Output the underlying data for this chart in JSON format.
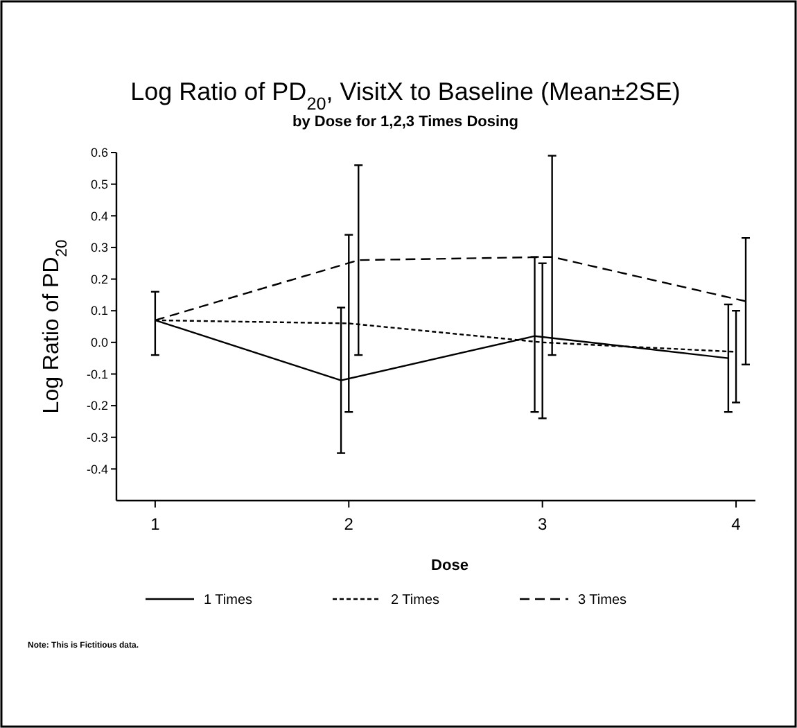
{
  "chart_data": {
    "type": "line",
    "title": "Log Ratio of PD$_{20}$, VisitX to Baseline (Mean±2SE)",
    "subtitle": "by Dose for 1,2,3 Times Dosing",
    "xlabel": "Dose",
    "ylabel": "Log Ratio of PD$_{20}$",
    "xlim": [
      0.8,
      4.1
    ],
    "xticks": [
      1,
      2,
      3,
      4
    ],
    "ylim": [
      -0.5,
      0.6
    ],
    "yticks": [
      0.6,
      0.5,
      0.4,
      0.3,
      0.2,
      0.1,
      {
        "value": 0,
        "label": "0.0"
      },
      -0.1,
      -0.2,
      -0.3,
      -0.4
    ],
    "series": [
      {
        "name": "1 Times",
        "color": "#000000",
        "line_style": "solid",
        "x": [
          1,
          1.96,
          2.96,
          3.96
        ],
        "values": [
          0.07,
          -0.12,
          0.02,
          -0.05
        ],
        "errors": [
          [
            -0.04,
            0.16
          ],
          [
            -0.35,
            0.11
          ],
          [
            -0.22,
            0.27
          ],
          [
            -0.22,
            0.12
          ]
        ]
      },
      {
        "name": "2 Times",
        "color": "#000000",
        "line_style": "dotted",
        "x": [
          1,
          2,
          3,
          4
        ],
        "values": [
          0.07,
          0.06,
          0.0,
          -0.03
        ],
        "errors": [
          null,
          [
            -0.22,
            0.34
          ],
          [
            -0.24,
            0.25
          ],
          [
            -0.19,
            0.1
          ]
        ]
      },
      {
        "name": "3 Times",
        "color": "#000000",
        "line_style": "dashed",
        "x": [
          1,
          2.05,
          3.05,
          4.05
        ],
        "values": [
          0.07,
          0.26,
          0.27,
          0.13
        ],
        "errors": [
          null,
          [
            -0.04,
            0.56
          ],
          [
            -0.04,
            0.59
          ],
          [
            -0.07,
            0.33
          ]
        ]
      }
    ],
    "marker": "none",
    "grid": false,
    "legend": "bottom",
    "annotations": [
      "Note: This is Fictitious data."
    ]
  }
}
